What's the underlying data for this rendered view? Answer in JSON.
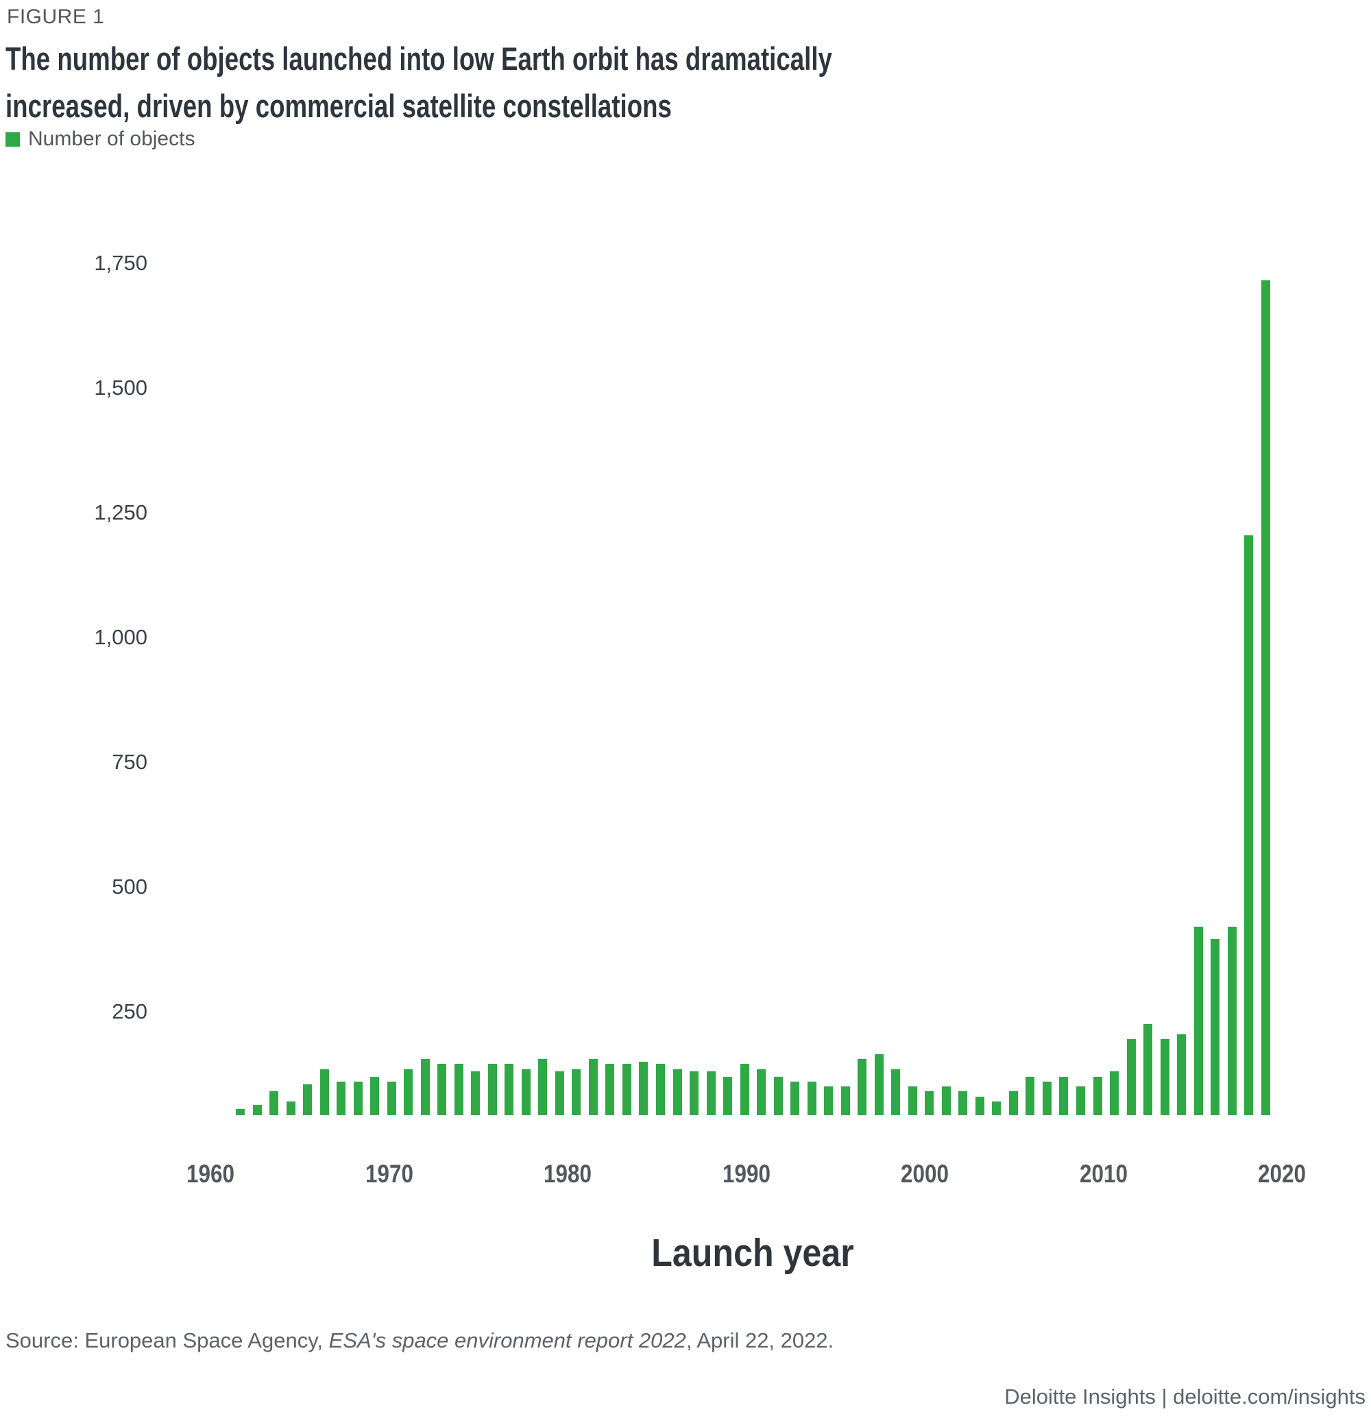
{
  "figure_label": "FIGURE 1",
  "title": {
    "line1": "The number of objects launched into low Earth orbit has dramatically",
    "line2": "increased, driven by commercial satellite constellations"
  },
  "legend": {
    "label": "Number of objects",
    "color": "#2fa846"
  },
  "chart_data": {
    "type": "bar",
    "title": "The number of objects launched into low Earth orbit has dramatically increased, driven by commercial satellite constellations",
    "series_name": "Number of objects",
    "xlabel": "Launch year",
    "ylabel": "",
    "ylim": [
      0,
      1750
    ],
    "grid": false,
    "legend_position": "top-left",
    "bar_color": "#2fa846",
    "x": [
      1960,
      1961,
      1962,
      1963,
      1964,
      1965,
      1966,
      1967,
      1968,
      1969,
      1970,
      1971,
      1972,
      1973,
      1974,
      1975,
      1976,
      1977,
      1978,
      1979,
      1980,
      1981,
      1982,
      1983,
      1984,
      1985,
      1986,
      1987,
      1988,
      1989,
      1990,
      1991,
      1992,
      1993,
      1994,
      1995,
      1996,
      1997,
      1998,
      1999,
      2000,
      2001,
      2002,
      2003,
      2004,
      2005,
      2006,
      2007,
      2008,
      2009,
      2010,
      2011,
      2012,
      2013,
      2014,
      2015,
      2016,
      2017,
      2018,
      2019,
      2020,
      2021
    ],
    "values": [
      55,
      63,
      90,
      70,
      105,
      135,
      110,
      110,
      120,
      110,
      135,
      155,
      145,
      145,
      130,
      145,
      145,
      135,
      155,
      130,
      135,
      155,
      145,
      145,
      150,
      145,
      135,
      130,
      130,
      120,
      145,
      135,
      120,
      110,
      110,
      100,
      100,
      155,
      165,
      135,
      100,
      90,
      100,
      90,
      80,
      70,
      90,
      120,
      110,
      120,
      100,
      120,
      130,
      195,
      225,
      195,
      205,
      420,
      395,
      420,
      1205,
      1715
    ],
    "yticks": [
      {
        "label": "1,750",
        "value": 1750
      },
      {
        "label": "1,500",
        "value": 1500
      },
      {
        "label": "1,250",
        "value": 1250
      },
      {
        "label": "1,000",
        "value": 1000
      },
      {
        "label": "750",
        "value": 750
      },
      {
        "label": "500",
        "value": 500
      },
      {
        "label": "250",
        "value": 250
      }
    ],
    "xticks": [
      {
        "label": "1960",
        "index": 0
      },
      {
        "label": "1970",
        "index": 1
      },
      {
        "label": "1980",
        "index": 2
      },
      {
        "label": "1990",
        "index": 3
      },
      {
        "label": "2000",
        "index": 4
      },
      {
        "label": "2010",
        "index": 5
      },
      {
        "label": "2020",
        "index": 6
      }
    ]
  },
  "source": {
    "prefix": "Source: European Space Agency, ",
    "italic": "ESA's space environment report 2022",
    "suffix": ", April 22, 2022."
  },
  "footer": {
    "brand": "Deloitte Insights",
    "separator": " | ",
    "link": "deloitte.com/insights"
  }
}
